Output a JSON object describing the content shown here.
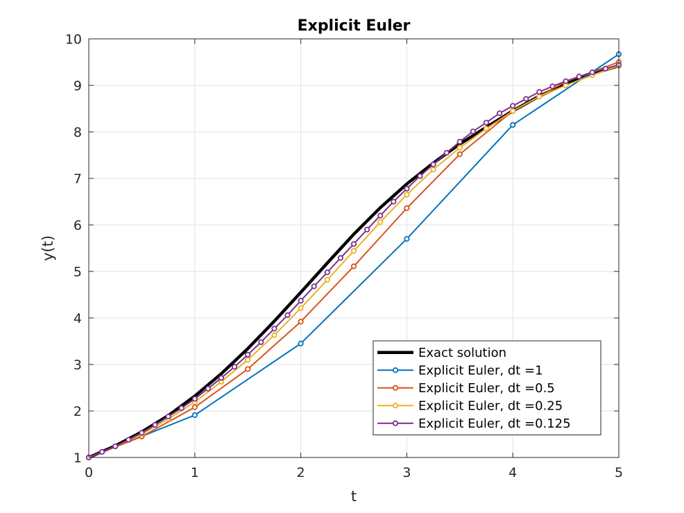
{
  "chart_data": {
    "type": "line",
    "title": "Explicit Euler",
    "xlabel": "t",
    "ylabel": "y(t)",
    "xlim": [
      0,
      5
    ],
    "ylim": [
      1,
      10
    ],
    "xticks": [
      "0",
      "1",
      "2",
      "3",
      "4",
      "5"
    ],
    "yticks": [
      "1",
      "2",
      "3",
      "4",
      "5",
      "6",
      "7",
      "8",
      "9",
      "10"
    ],
    "grid": true,
    "legend_position": "bottom-right",
    "series": [
      {
        "name": "Exact solution",
        "color": "#000000",
        "markers": false,
        "x": [
          0,
          0.25,
          0.5,
          0.75,
          1,
          1.25,
          1.5,
          1.75,
          2,
          2.25,
          2.5,
          2.75,
          3,
          3.25,
          3.5,
          3.75,
          4,
          4.25,
          4.5,
          4.75,
          5
        ],
        "y": [
          1.0,
          1.25,
          1.55,
          1.9,
          2.32,
          2.8,
          3.34,
          3.93,
          4.55,
          5.18,
          5.8,
          6.37,
          6.88,
          7.33,
          7.74,
          8.1,
          8.45,
          8.77,
          9.03,
          9.25,
          9.42
        ]
      },
      {
        "name": "Explicit Euler, dt =1",
        "color": "#0072BD",
        "markers": true,
        "x": [
          0,
          1,
          2,
          3,
          4,
          5
        ],
        "y": [
          1.0,
          1.91,
          3.45,
          5.7,
          8.15,
          9.67
        ]
      },
      {
        "name": "Explicit Euler, dt =0.5",
        "color": "#D95319",
        "markers": true,
        "x": [
          0,
          0.5,
          1,
          1.5,
          2,
          2.5,
          3,
          3.5,
          4,
          4.5,
          5
        ],
        "y": [
          1.0,
          1.45,
          2.08,
          2.9,
          3.92,
          5.11,
          6.36,
          7.52,
          8.45,
          9.08,
          9.5
        ]
      },
      {
        "name": "Explicit Euler, dt =0.25",
        "color": "#EDB120",
        "markers": true,
        "x": [
          0,
          0.25,
          0.5,
          0.75,
          1,
          1.25,
          1.5,
          1.75,
          2,
          2.25,
          2.5,
          2.75,
          3,
          3.25,
          3.5,
          3.75,
          4,
          4.25,
          4.5,
          4.75,
          5
        ],
        "y": [
          1.0,
          1.24,
          1.5,
          1.83,
          2.19,
          2.63,
          3.1,
          3.63,
          4.21,
          4.82,
          5.44,
          6.06,
          6.65,
          7.19,
          7.66,
          8.07,
          8.45,
          8.76,
          9.0,
          9.22,
          9.42
        ]
      },
      {
        "name": "Explicit Euler, dt =0.125",
        "color": "#7E2F8E",
        "markers": true,
        "x": [
          0,
          0.125,
          0.25,
          0.375,
          0.5,
          0.625,
          0.75,
          0.875,
          1,
          1.125,
          1.25,
          1.375,
          1.5,
          1.625,
          1.75,
          1.875,
          2,
          2.125,
          2.25,
          2.375,
          2.5,
          2.625,
          2.75,
          2.875,
          3,
          3.125,
          3.25,
          3.375,
          3.5,
          3.625,
          3.75,
          3.875,
          4,
          4.125,
          4.25,
          4.375,
          4.5,
          4.625,
          4.75,
          4.875,
          5
        ],
        "y": [
          1.0,
          1.12,
          1.24,
          1.38,
          1.53,
          1.7,
          1.88,
          2.06,
          2.26,
          2.48,
          2.71,
          2.95,
          3.21,
          3.48,
          3.77,
          4.06,
          4.37,
          4.68,
          4.98,
          5.29,
          5.59,
          5.9,
          6.2,
          6.5,
          6.78,
          7.05,
          7.3,
          7.55,
          7.79,
          8.01,
          8.2,
          8.4,
          8.56,
          8.71,
          8.86,
          8.98,
          9.09,
          9.19,
          9.28,
          9.36,
          9.44
        ]
      }
    ]
  }
}
